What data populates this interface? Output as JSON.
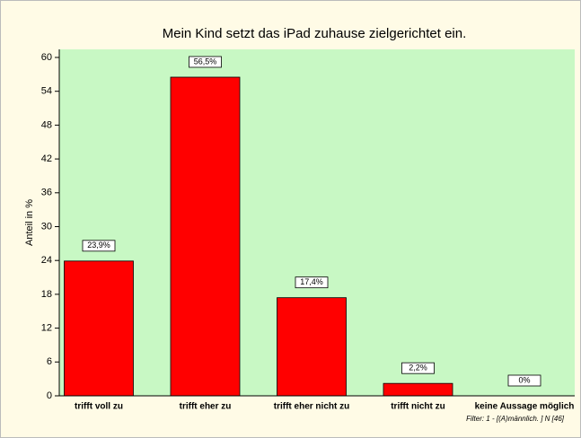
{
  "chart_data": {
    "type": "bar",
    "title": "Mein Kind setzt das iPad zuhause zielgerichtet ein.",
    "y_label": "Anteil in %",
    "categories": [
      "trifft voll zu",
      "trifft eher zu",
      "trifft eher nicht zu",
      "trifft nicht zu",
      "keine Aussage möglich"
    ],
    "values": [
      23.9,
      56.5,
      17.4,
      2.2,
      0
    ],
    "value_labels": [
      "23,9%",
      "56,5%",
      "17,4%",
      "2,2%",
      "0%"
    ],
    "color": "#ff0000",
    "ylim": [
      0,
      60
    ],
    "yticks": [
      0,
      6,
      12,
      18,
      24,
      30,
      36,
      42,
      48,
      54,
      60
    ],
    "footnote": "Filter:   1 -  [(A)männlich. ]    N [46]"
  }
}
